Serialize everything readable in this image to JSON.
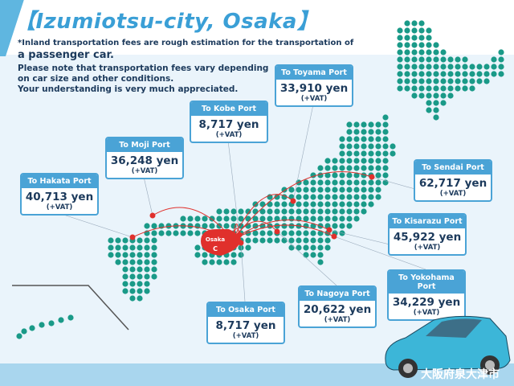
{
  "title": "【Izumiotsu-city, Osaka】",
  "notes": [
    "*Inland transportation fees are rough estimation for the transportation of",
    "a passenger car.",
    "Please note that transportation fees vary depending",
    "on car size and other conditions.",
    "Your understanding is very much appreciated."
  ],
  "origin": {
    "label": "Osaka",
    "marker": "C"
  },
  "ports": [
    {
      "name": "To Toyama Port",
      "price": "33,910 yen",
      "tax": "(+VAT)"
    },
    {
      "name": "To Kobe Port",
      "price": "8,717 yen",
      "tax": "(+VAT)"
    },
    {
      "name": "To Moji Port",
      "price": "36,248 yen",
      "tax": "(+VAT)"
    },
    {
      "name": "To Hakata Port",
      "price": "40,713 yen",
      "tax": "(+VAT)"
    },
    {
      "name": "To Sendai Port",
      "price": "62,717 yen",
      "tax": "(+VAT)"
    },
    {
      "name": "To Kisarazu Port",
      "price": "45,922 yen",
      "tax": "(+VAT)"
    },
    {
      "name": "To Yokohama Port",
      "price": "34,229 yen",
      "tax": "(+VAT)"
    },
    {
      "name": "To Nagoya Port",
      "price": "20,622 yen",
      "tax": "(+VAT)"
    },
    {
      "name": "To Osaka Port",
      "price": "8,717 yen",
      "tax": "(+VAT)"
    }
  ],
  "watermark": "大阪府泉大津市",
  "colors": {
    "accent": "#4aa3d6",
    "map_dots": "#1a9a88",
    "route": "#e0302c"
  }
}
